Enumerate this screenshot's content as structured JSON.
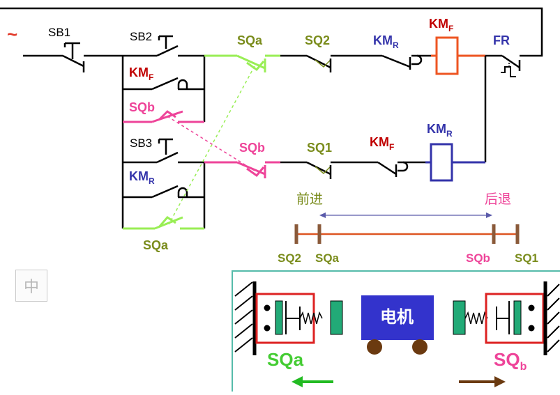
{
  "circuit": {
    "power_symbol": "~",
    "sb1": "SB1",
    "sb2": "SB2",
    "sb3": "SB3",
    "km_f_hold": {
      "main": "KM",
      "sub": "F"
    },
    "km_r_hold": {
      "main": "KM",
      "sub": "R"
    },
    "sqb_branch": "SQb",
    "sqa_branch": "SQa",
    "top_sqa": "SQa",
    "top_sq2": "SQ2",
    "top_km_r": {
      "main": "KM",
      "sub": "R"
    },
    "coil_km_f": {
      "main": "KM",
      "sub": "F"
    },
    "fr": "FR",
    "bottom_sqb": "SQb",
    "bottom_sq1": "SQ1",
    "bottom_km_f": {
      "main": "KM",
      "sub": "F"
    },
    "coil_km_r": {
      "main": "KM",
      "sub": "R"
    }
  },
  "track": {
    "forward": "前进",
    "backward": "后退",
    "sq2": "SQ2",
    "sqa": "SQa",
    "sqb": "SQb",
    "sq1": "SQ1"
  },
  "mechanism": {
    "motor": "电机",
    "left_switch": {
      "main": "SQa",
      "sub": ""
    },
    "right_switch": {
      "main": "SQ",
      "sub": "b"
    }
  },
  "ime_indicator": "中",
  "colors": {
    "wire": "#000000",
    "km_f": "#c00000",
    "km_r": "#3333aa",
    "sqa": "#99ee55",
    "sqb": "#ee4499",
    "olive": "#7a8c1c",
    "coil_f": "#ee5522",
    "coil_r": "#3333aa",
    "track": "#dd5522",
    "motor": "#3333cc",
    "teal": "#55bbaa"
  }
}
